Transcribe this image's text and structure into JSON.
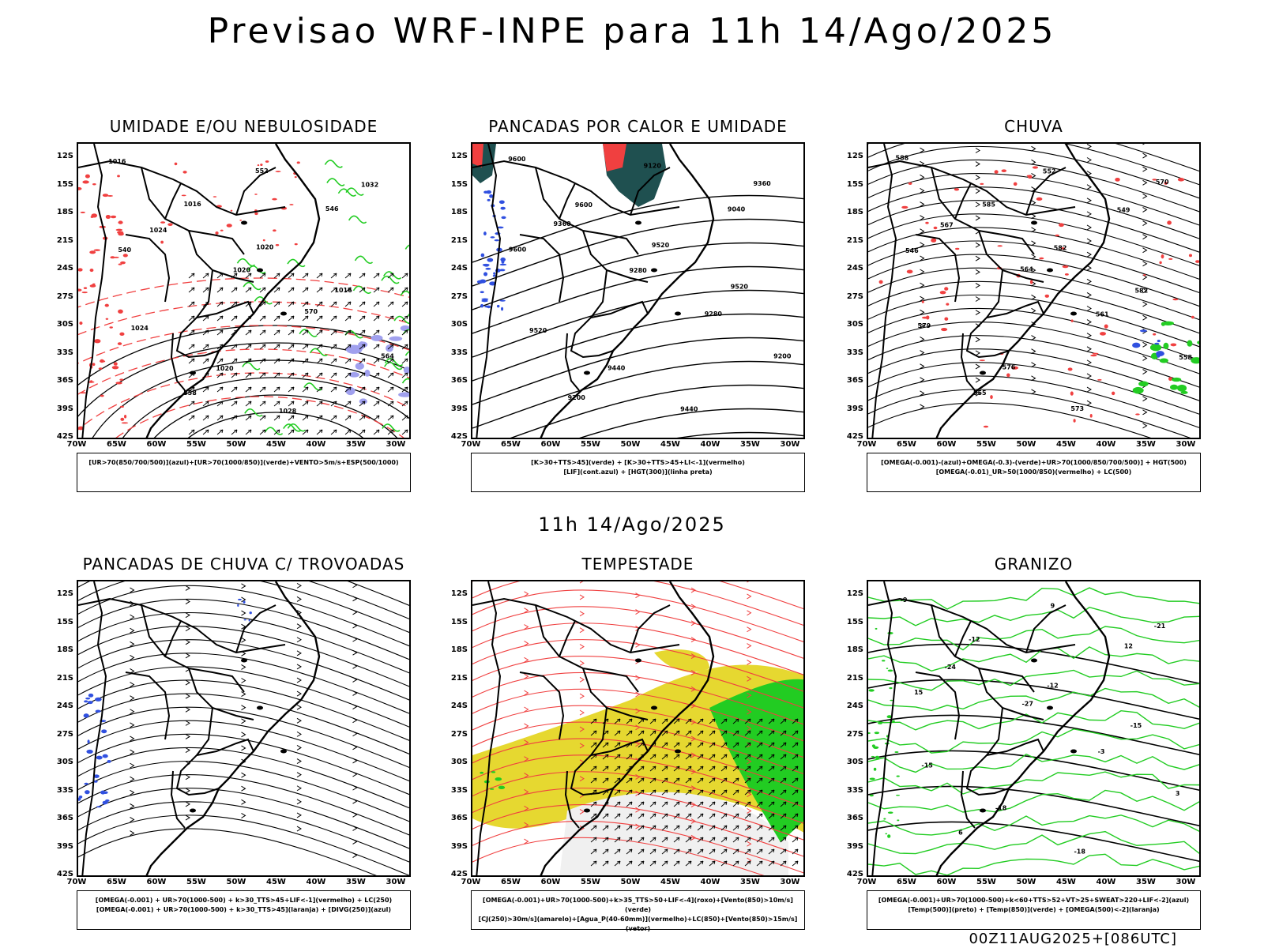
{
  "title": "Previsao WRF-INPE  para 11h 14/Ago/2025",
  "mid_title": "11h 14/Ago/2025",
  "footer": "00Z11AUG2025+[086UTC]",
  "axes": {
    "lat_labels": [
      "12S",
      "15S",
      "18S",
      "21S",
      "24S",
      "27S",
      "30S",
      "33S",
      "36S",
      "39S",
      "42S"
    ],
    "lon_labels": [
      "70W",
      "65W",
      "60W",
      "55W",
      "50W",
      "45W",
      "40W",
      "35W",
      "30W"
    ]
  },
  "colors": {
    "blue": "#3050e0",
    "green": "#22cc22",
    "red": "#f04040",
    "yellow": "#e6d830",
    "dark_teal": "#1f5050",
    "lavender": "#a0a0ee",
    "black": "#000000"
  },
  "panels": [
    {
      "id": "umidade",
      "title": "UMIDADE E/OU NEBULOSIDADE",
      "legend": [
        "[UR>70(850/700/500)](azul)+[UR>70(1000/850)](verde)+VENTO>5m/s+ESP(500/1000)"
      ],
      "contour_labels": [
        "1016",
        "1016",
        "1020",
        "1016",
        "1024",
        "1020",
        "1028",
        "1032",
        "1024",
        "1020",
        "570",
        "564",
        "558",
        "552",
        "546",
        "540"
      ]
    },
    {
      "id": "pancadas-calor",
      "title": "PANCADAS POR CALOR E UMIDADE",
      "legend": [
        "[K>30+TTS>45](verde) + [K>30+TTS>45+LI<-1](vermelho)",
        "[LIF](cont.azul) + [HGT(300)](linha preta)"
      ],
      "contour_labels": [
        "9600",
        "9600",
        "9520",
        "9520",
        "9520",
        "9440",
        "9440",
        "9360",
        "9360",
        "9280",
        "9280",
        "9200",
        "9200",
        "9120",
        "9040",
        "9600"
      ]
    },
    {
      "id": "chuva",
      "title": "CHUVA",
      "legend": [
        "[OMEGA(-0.001)-(azul)+OMEGA(-0.3)-(verde)+UR>70(1000/850/700/500)] + HGT(500)",
        "[OMEGA(-0.01)_UR>50(1000/850)(vermelho) + LC(500)"
      ],
      "contour_labels": [
        "588",
        "585",
        "582",
        "582",
        "579",
        "576",
        "573",
        "570",
        "567",
        "564",
        "561",
        "558",
        "555",
        "552",
        "549",
        "546"
      ]
    },
    {
      "id": "pancadas-trovoadas",
      "title": "PANCADAS DE CHUVA C/ TROVOADAS",
      "legend": [
        "[OMEGA(-0.001) + UR>70(1000-500) + k>30_TTS>45+LIF<-1](vermelho) + LC(250)",
        "[OMEGA(-0.001) + UR>70(1000-500) + k>30_TTS>45](laranja) + [DIVG(250)](azul)"
      ],
      "contour_labels": []
    },
    {
      "id": "tempestade",
      "title": "TEMPESTADE",
      "legend": [
        "[OMEGA(-0.001)+UR>70(1000-500)+k>35_TTS>50+LIF<-4](roxo)+[Vento(850)>10m/s](verde)",
        "[CJ(250)>30m/s](amarelo)+[Agua_P(40-60mm)](vermelho)+LC(850)+[Vento(850)>15m/s](vetor)"
      ],
      "contour_labels": []
    },
    {
      "id": "granizo",
      "title": "GRANIZO",
      "legend": [
        "[OMEGA(-0.001)+UR>70(1000-500)+k<60+TTS>52+VT>25+SWEAT>220+LIF<-2](azul)",
        "[Temp(500)](preto) + [Temp(850)](verde) + [OMEGA(500)<-2](laranja)"
      ],
      "contour_labels": [
        "-9",
        "-12",
        "-12",
        "-15",
        "-15",
        "-18",
        "-18",
        "-21",
        "-24",
        "-27",
        "-3",
        "3",
        "6",
        "9",
        "12",
        "15"
      ]
    }
  ]
}
